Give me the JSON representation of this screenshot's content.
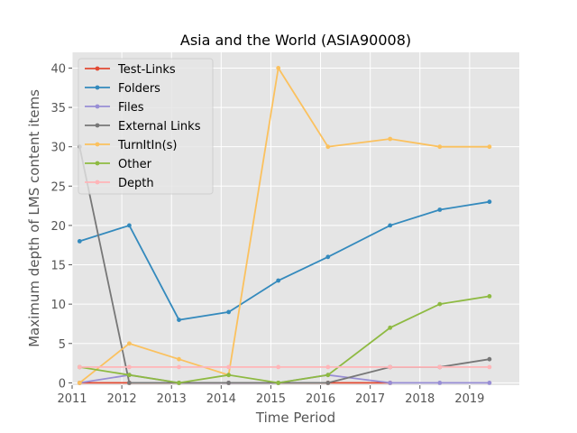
{
  "chart_data": {
    "type": "line",
    "title": "Asia and the World (ASIA90008)",
    "xlabel": "Time Period",
    "ylabel": "Maximum depth of LMS content items",
    "xlim": [
      2011,
      2020
    ],
    "ylim": [
      -0.3,
      42
    ],
    "x_ticks": [
      2011,
      2012,
      2013,
      2014,
      2015,
      2016,
      2017,
      2018,
      2019
    ],
    "y_ticks": [
      0,
      5,
      10,
      15,
      20,
      25,
      30,
      35,
      40
    ],
    "grid": true,
    "legend_placement": "top-left",
    "x": [
      2011.15,
      2012.15,
      2013.15,
      2014.15,
      2015.15,
      2016.15,
      2017.4,
      2018.4,
      2019.4
    ],
    "series": [
      {
        "name": "Test-Links",
        "color": "#e24a33",
        "values": [
          0,
          0,
          0,
          0,
          0,
          0,
          0,
          null,
          null
        ]
      },
      {
        "name": "Folders",
        "color": "#348abd",
        "values": [
          18,
          20,
          8,
          9,
          13,
          16,
          20,
          22,
          23
        ]
      },
      {
        "name": "Files",
        "color": "#988ed5",
        "values": [
          0,
          1,
          0,
          0,
          0,
          1,
          0,
          0,
          0
        ]
      },
      {
        "name": "External Links",
        "color": "#777777",
        "values": [
          30,
          0,
          0,
          0,
          0,
          0,
          2,
          2,
          3
        ]
      },
      {
        "name": "TurnItIn(s)",
        "color": "#fbc15e",
        "values": [
          0,
          5,
          3,
          1,
          40,
          30,
          31,
          30,
          30
        ]
      },
      {
        "name": "Other",
        "color": "#8eba42",
        "values": [
          2,
          1,
          0,
          1,
          0,
          1,
          7,
          10,
          11
        ]
      },
      {
        "name": "Depth",
        "color": "#ffb5b8",
        "values": [
          2,
          2,
          2,
          2,
          2,
          2,
          2,
          2,
          2
        ]
      }
    ]
  }
}
